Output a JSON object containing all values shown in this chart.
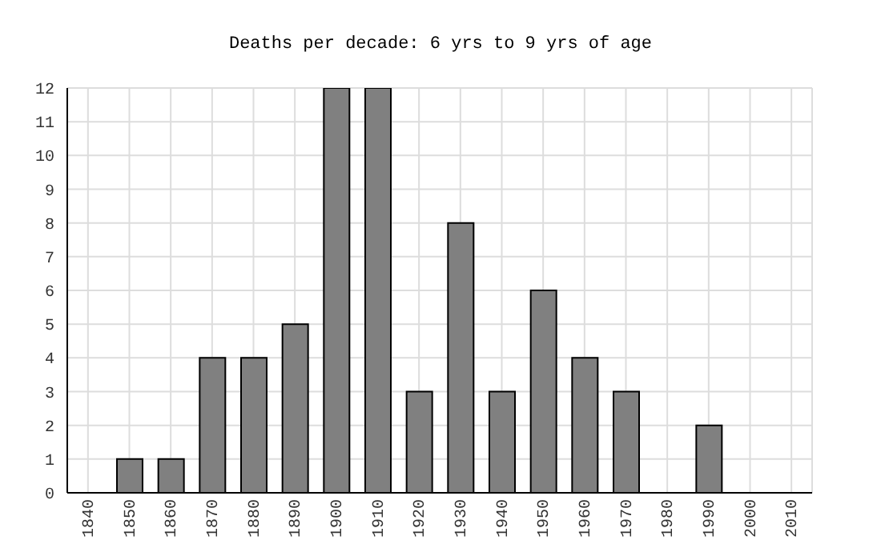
{
  "chart_data": {
    "type": "bar",
    "title": "Deaths per decade: 6 yrs to 9 yrs of age",
    "categories": [
      "1840",
      "1850",
      "1860",
      "1870",
      "1880",
      "1890",
      "1900",
      "1910",
      "1920",
      "1930",
      "1940",
      "1950",
      "1960",
      "1970",
      "1980",
      "1990",
      "2000",
      "2010"
    ],
    "values": [
      0,
      1,
      1,
      4,
      4,
      5,
      12,
      12,
      3,
      8,
      3,
      6,
      4,
      3,
      0,
      2,
      0,
      0
    ],
    "color": "#808080",
    "ylim": [
      0,
      12
    ],
    "yticks": [
      0,
      1,
      2,
      3,
      4,
      5,
      6,
      7,
      8,
      9,
      10,
      11,
      12
    ],
    "grid": true
  }
}
